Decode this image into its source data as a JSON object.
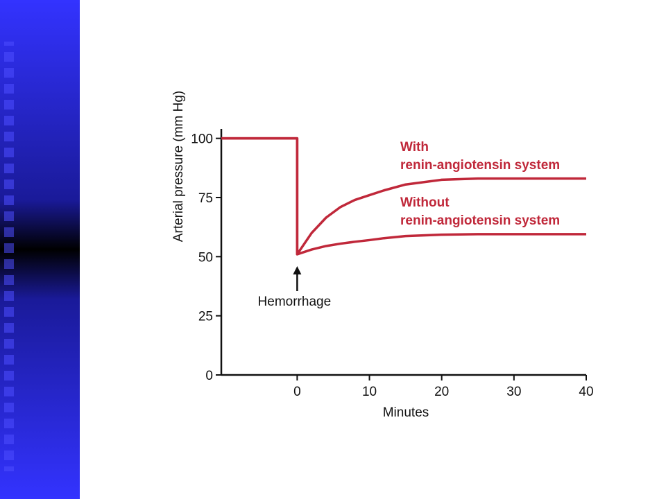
{
  "chart_data": {
    "type": "line",
    "y_label": "Arterial pressure (mm Hg)",
    "x_label": "Minutes",
    "annotation": "Hemorrhage",
    "x": [
      -10.5,
      0,
      0,
      2,
      4,
      6,
      8,
      10,
      12,
      15,
      20,
      25,
      30,
      40
    ],
    "series": [
      {
        "name": "With\nrenin-angiotensin system",
        "color": "#c0283a",
        "values": [
          100,
          100,
          51,
          60,
          66.5,
          71,
          74,
          76,
          78,
          80.5,
          82.5,
          83,
          83,
          83
        ]
      },
      {
        "name": "Without\nrenin-angiotensin system",
        "color": "#c0283a",
        "values": [
          100,
          100,
          51,
          53,
          54.5,
          55.5,
          56.3,
          57,
          57.8,
          58.7,
          59.3,
          59.5,
          59.5,
          59.5
        ]
      }
    ],
    "xlim": [
      -10.5,
      40
    ],
    "ylim": [
      0,
      104
    ],
    "xticks": [
      0,
      10,
      20,
      30,
      40
    ],
    "yticks": [
      0,
      25,
      50,
      75,
      100
    ]
  }
}
